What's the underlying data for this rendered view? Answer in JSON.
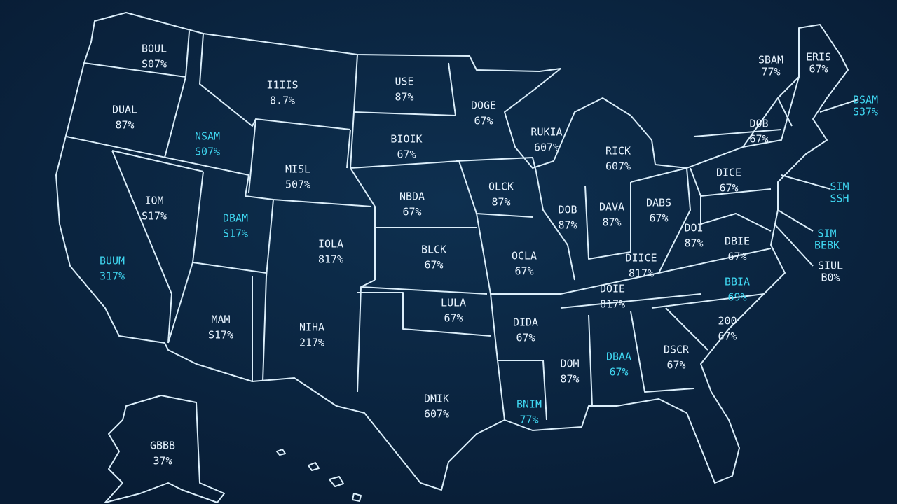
{
  "labels": [
    {
      "name": "BOUL",
      "value": "S07%",
      "color": "#e8f4ff"
    },
    {
      "name": "DUAL",
      "value": "87%",
      "color": "#e8f4ff"
    },
    {
      "name": "NSAM",
      "value": "S07%",
      "color": "#3fd6f0"
    },
    {
      "name": "I1IIS",
      "value": "8.7%",
      "color": "#e8f4ff"
    },
    {
      "name": "USE",
      "value": "87%",
      "color": "#e8f4ff"
    },
    {
      "name": "DOGE",
      "value": "67%",
      "color": "#e8f4ff"
    },
    {
      "name": "BIOIK",
      "value": "67%",
      "color": "#e8f4ff"
    },
    {
      "name": "MISL",
      "value": "507%",
      "color": "#e8f4ff"
    },
    {
      "name": "NBDA",
      "value": "67%",
      "color": "#e8f4ff"
    },
    {
      "name": "IOM",
      "value": "S17%",
      "color": "#e8f4ff"
    },
    {
      "name": "DBAM",
      "value": "S17%",
      "color": "#3fd6f0"
    },
    {
      "name": "IOLA",
      "value": "817%",
      "color": "#e8f4ff"
    },
    {
      "name": "BUUM",
      "value": "317%",
      "color": "#3fd6f0"
    },
    {
      "name": "OLCK",
      "value": "87%",
      "color": "#e8f4ff"
    },
    {
      "name": "RUKIA",
      "value": "607%",
      "color": "#e8f4ff"
    },
    {
      "name": "RICK",
      "value": "607%",
      "color": "#e8f4ff"
    },
    {
      "name": "DOB",
      "value": "87%",
      "color": "#e8f4ff"
    },
    {
      "name": "DAVA",
      "value": "87%",
      "color": "#e8f4ff"
    },
    {
      "name": "DABS",
      "value": "67%",
      "color": "#e8f4ff"
    },
    {
      "name": "BLCK",
      "value": "67%",
      "color": "#e8f4ff"
    },
    {
      "name": "OCLA",
      "value": "67%",
      "color": "#e8f4ff"
    },
    {
      "name": "DIICE",
      "value": "817%",
      "color": "#e8f4ff"
    },
    {
      "name": "DOB",
      "value": "67%",
      "color": "#e8f4ff"
    },
    {
      "name": "DICE",
      "value": "67%",
      "color": "#e8f4ff"
    },
    {
      "name": "DOI",
      "value": "87%",
      "color": "#e8f4ff"
    },
    {
      "name": "DBIE",
      "value": "67%",
      "color": "#e8f4ff"
    },
    {
      "name": "DOIE",
      "value": "817%",
      "color": "#e8f4ff"
    },
    {
      "name": "LULA",
      "value": "67%",
      "color": "#e8f4ff"
    },
    {
      "name": "MAM",
      "value": "S17%",
      "color": "#e8f4ff"
    },
    {
      "name": "NIHA",
      "value": "217%",
      "color": "#e8f4ff"
    },
    {
      "name": "DIDA",
      "value": "67%",
      "color": "#e8f4ff"
    },
    {
      "name": "BBIA",
      "value": "69%",
      "color": "#3fd6f0"
    },
    {
      "name": "200",
      "value": "67%",
      "color": "#e8f4ff"
    },
    {
      "name": "DOM",
      "value": "87%",
      "color": "#e8f4ff"
    },
    {
      "name": "DBAA",
      "value": "67%",
      "color": "#3fd6f0"
    },
    {
      "name": "DSCR",
      "value": "67%",
      "color": "#e8f4ff"
    },
    {
      "name": "DMIK",
      "value": "607%",
      "color": "#e8f4ff"
    },
    {
      "name": "BNIM",
      "value": "77%",
      "color": "#3fd6f0"
    },
    {
      "name": "GBBB",
      "value": "37%",
      "color": "#e8f4ff"
    },
    {
      "name": "SBAM",
      "value": "77%",
      "color": "#e8f4ff"
    },
    {
      "name": "ERIS",
      "value": "67%",
      "color": "#e8f4ff"
    },
    {
      "name": "BSAM",
      "value": "S37%",
      "color": "#3fd6f0"
    },
    {
      "name": "SIM",
      "value": "SSH",
      "color": "#3fd6f0"
    },
    {
      "name": "SIM",
      "value": "BEBK",
      "color": "#3fd6f0"
    },
    {
      "name": "SIUL",
      "value": "B0%",
      "color": "#e8f4ff"
    }
  ]
}
